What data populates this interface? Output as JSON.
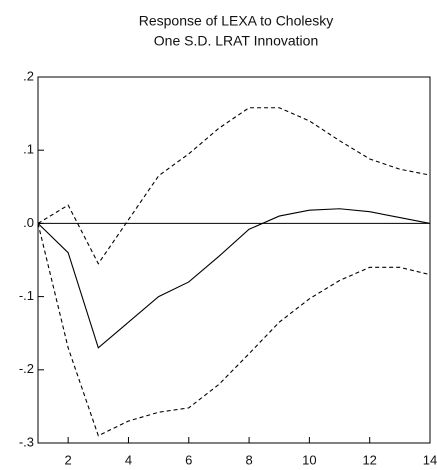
{
  "chart_data": {
    "type": "line",
    "title": "Response of LEXA to Cholesky",
    "subtitle": "One S.D. LRAT Innovation",
    "x": [
      1,
      2,
      3,
      4,
      5,
      6,
      7,
      8,
      9,
      10,
      11,
      12,
      13,
      14
    ],
    "series": [
      {
        "color": "#000000",
        "dashed": false,
        "values": [
          0.0,
          -0.04,
          -0.17,
          -0.135,
          -0.1,
          -0.08,
          -0.045,
          -0.008,
          0.01,
          0.018,
          0.02,
          0.016,
          0.008,
          0.0
        ]
      },
      {
        "color": "#000000",
        "dashed": true,
        "values": [
          0.0,
          0.025,
          -0.055,
          0.005,
          0.065,
          0.095,
          0.13,
          0.158,
          0.158,
          0.14,
          0.113,
          0.088,
          0.074,
          0.066
        ]
      },
      {
        "color": "#000000",
        "dashed": true,
        "values": [
          0.0,
          -0.17,
          -0.29,
          -0.27,
          -0.258,
          -0.252,
          -0.22,
          -0.178,
          -0.135,
          -0.103,
          -0.078,
          -0.06,
          -0.06,
          -0.07
        ]
      }
    ],
    "reference_line": 0,
    "xlim": [
      1,
      14
    ],
    "xticks": [
      2,
      4,
      6,
      8,
      10,
      12,
      14
    ],
    "ylim": [
      -0.3,
      0.2
    ],
    "yticks": [
      {
        "value": -0.3,
        "label": "-.3"
      },
      {
        "value": -0.2,
        "label": "-.2"
      },
      {
        "value": -0.1,
        "label": "-.1"
      },
      {
        "value": 0,
        "label": ".0"
      },
      {
        "value": 0.1,
        "label": ".1"
      },
      {
        "value": 0.2,
        "label": ".2"
      }
    ],
    "grid": false
  }
}
